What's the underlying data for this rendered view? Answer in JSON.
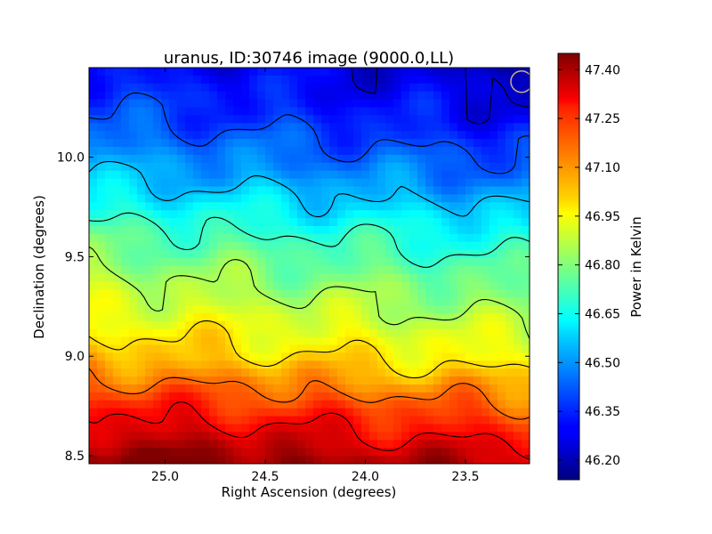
{
  "chart_data": {
    "type": "heatmap",
    "title": "uranus, ID:30746 image (9000.0,LL)",
    "xlabel": "Right Ascension (degrees)",
    "ylabel": "Declination (degrees)",
    "xlim": [
      25.38,
      23.18
    ],
    "ylim": [
      8.46,
      10.45
    ],
    "x_ticks": [
      25.0,
      24.5,
      24.0,
      23.5
    ],
    "x_tick_labels": [
      "25.0",
      "24.5",
      "24.0",
      "23.5"
    ],
    "y_ticks": [
      8.5,
      9.0,
      9.5,
      10.0
    ],
    "y_tick_labels": [
      "8.5",
      "9.0",
      "9.5",
      "10.0"
    ],
    "colorbar": {
      "label": "Power in Kelvin",
      "min": 46.14,
      "max": 47.45,
      "ticks": [
        46.2,
        46.35,
        46.5,
        46.65,
        46.8,
        46.95,
        47.1,
        47.25,
        47.4
      ],
      "tick_labels": [
        "46.20",
        "46.35",
        "46.50",
        "46.65",
        "46.80",
        "46.95",
        "47.10",
        "47.25",
        "47.40"
      ],
      "colormap": "jet"
    },
    "gradient": {
      "direction": "power decreases with increasing declination",
      "value_at_dec": [
        {
          "dec": 8.46,
          "power": 47.42
        },
        {
          "dec": 8.7,
          "power": 47.25
        },
        {
          "dec": 9.0,
          "power": 47.0
        },
        {
          "dec": 9.3,
          "power": 46.85
        },
        {
          "dec": 9.6,
          "power": 46.7
        },
        {
          "dec": 9.9,
          "power": 46.5
        },
        {
          "dec": 10.2,
          "power": 46.35
        },
        {
          "dec": 10.45,
          "power": 46.28
        }
      ]
    },
    "contour_levels": [
      46.25,
      46.4,
      46.55,
      46.7,
      46.85,
      47.0,
      47.15,
      47.3
    ],
    "beam_marker": {
      "ra": 23.22,
      "dec": 10.38,
      "color": "#c8b07a"
    }
  }
}
